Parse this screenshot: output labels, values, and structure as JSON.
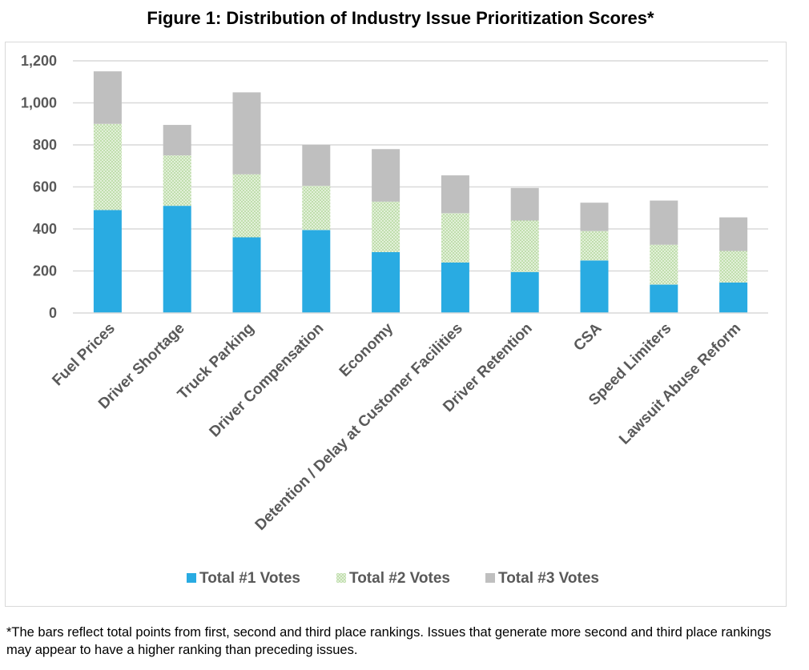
{
  "title": "Figure 1: Distribution of Industry Issue Prioritization Scores*",
  "footnote": "*The bars reflect total points from first, second and third place rankings.  Issues that generate more second and third place rankings may appear to have a higher ranking than preceding issues.",
  "colors": {
    "series1": "#29abe2",
    "series2_bg": "#e2f0d9",
    "series2_dot": "#a9d18e",
    "series3": "#bfbfbf",
    "axis_text": "#595959",
    "grid": "#d9d9d9"
  },
  "chart_data": {
    "type": "bar",
    "stacked": true,
    "title": "Figure 1: Distribution of Industry Issue Prioritization Scores*",
    "xlabel": "",
    "ylabel": "",
    "ylim": [
      0,
      1200
    ],
    "yticks": [
      0,
      200,
      400,
      600,
      800,
      1000,
      1200
    ],
    "ytick_labels": [
      "0",
      "200",
      "400",
      "600",
      "800",
      "1,000",
      "1,200"
    ],
    "grid": true,
    "legend_position": "bottom",
    "categories": [
      "Fuel Prices",
      "Driver Shortage",
      "Truck Parking",
      "Driver Compensation",
      "Economy",
      "Detention / Delay at Customer Facilities",
      "Driver Retention",
      "CSA",
      "Speed Limiters",
      "Lawsuit Abuse Reform"
    ],
    "series": [
      {
        "name": "Total #1 Votes",
        "values": [
          490,
          510,
          360,
          395,
          290,
          240,
          195,
          250,
          135,
          145
        ]
      },
      {
        "name": "Total #2 Votes",
        "values": [
          410,
          240,
          300,
          210,
          240,
          235,
          245,
          140,
          190,
          150
        ]
      },
      {
        "name": "Total #3 Votes",
        "values": [
          250,
          145,
          390,
          195,
          250,
          180,
          155,
          135,
          210,
          160
        ]
      }
    ]
  }
}
